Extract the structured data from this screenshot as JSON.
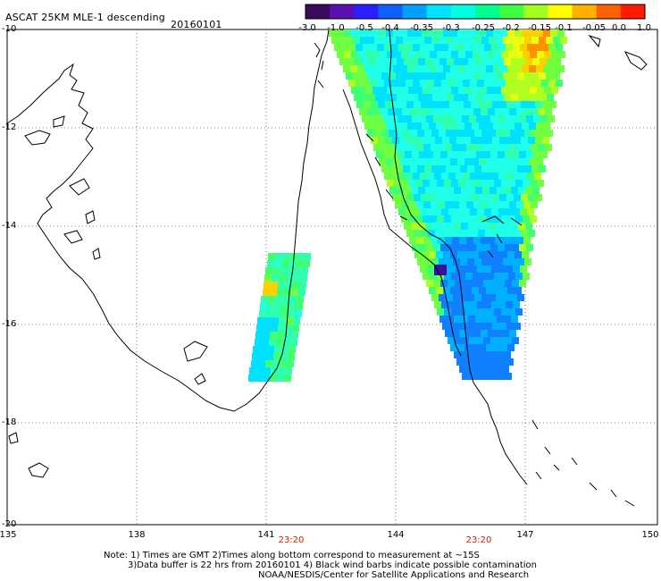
{
  "header": {
    "title": "ASCAT 25KM MLE-1 descending",
    "date": "20160101"
  },
  "colorbar": {
    "tick_labels": [
      "-3.0",
      "-1.0",
      "-0.5",
      "-0.4",
      "-0.35",
      "-0.3",
      "-0.25",
      "-0.2",
      "-0.15",
      "-0.1",
      "-0.05",
      "0.0",
      "1.0"
    ],
    "colors": [
      "#3a0a5c",
      "#5a10b0",
      "#2a20ff",
      "#1060ff",
      "#00a0ff",
      "#00e0ff",
      "#00ffe0",
      "#00ff90",
      "#40ff40",
      "#a0ff20",
      "#ffff00",
      "#ffb000",
      "#ff6000",
      "#ff1a00"
    ]
  },
  "map": {
    "lat_labels": [
      "-10",
      "-12",
      "-14",
      "-16",
      "-18",
      "-20"
    ],
    "lon_labels": [
      "135",
      "138",
      "141",
      "144",
      "147",
      "150"
    ],
    "time_labels": [
      "23:20",
      "23:20"
    ],
    "time_label_color": "#cc2200"
  },
  "footer": {
    "line1": "Note: 1) Times are GMT 2)Times along bottom correspond to measurement at ~15S",
    "line2": "3)Data buffer is 22 hrs from 20160101 4) Black wind barbs indicate possible contamination",
    "line3": "NOAA/NESDIS/Center for Satellite Applications and Research"
  }
}
